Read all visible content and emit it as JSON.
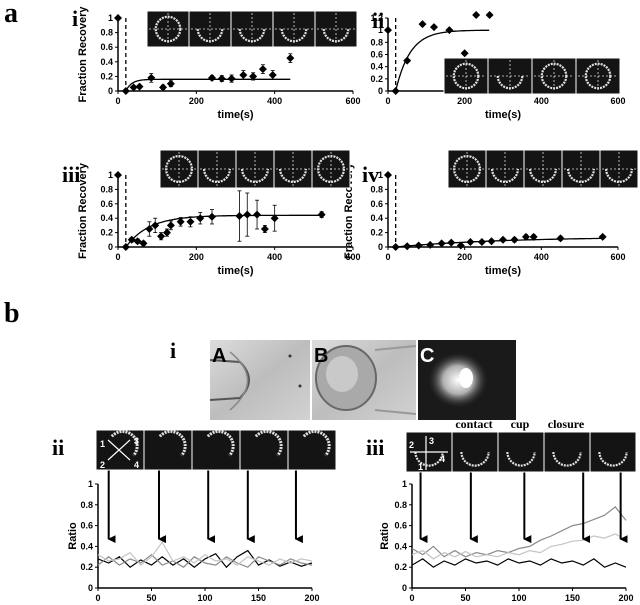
{
  "panel_a": {
    "letter": "a"
  },
  "panel_b": {
    "letter": "b"
  },
  "colors": {
    "ink": "#000000",
    "series_gray": "#8a8a8a",
    "series_light": "#c4c4c4",
    "image_bg": "#1a1a1a"
  },
  "b_micrographs": {
    "label": "i",
    "letters": [
      "A",
      "B",
      "C"
    ]
  },
  "b_quadrant_numbers": [
    "1",
    "2",
    "3",
    "4"
  ],
  "chart_data": [
    {
      "id": "a-i",
      "label": "i",
      "type": "scatter",
      "xlabel": "time(s)",
      "ylabel": "Fraction Recovery",
      "xlim": [
        0,
        600
      ],
      "ylim": [
        0,
        1
      ],
      "xticks": [
        "0",
        "200",
        "400",
        "600"
      ],
      "yticks": [
        "0",
        "0.2",
        "0.4",
        "0.6",
        "0.8",
        "1"
      ],
      "dashed_x": 20,
      "points": [
        [
          0,
          1
        ],
        [
          20,
          0
        ],
        [
          40,
          0.05
        ],
        [
          55,
          0.06
        ],
        [
          85,
          0.18
        ],
        [
          115,
          0.05
        ],
        [
          135,
          0.1
        ],
        [
          240,
          0.18
        ],
        [
          265,
          0.17
        ],
        [
          290,
          0.17
        ],
        [
          320,
          0.22
        ],
        [
          345,
          0.2
        ],
        [
          370,
          0.3
        ],
        [
          395,
          0.22
        ],
        [
          440,
          0.45
        ]
      ],
      "errors": [
        0,
        0,
        0.02,
        0.02,
        0.06,
        0.03,
        0.04,
        0.03,
        0.04,
        0.05,
        0.06,
        0.05,
        0.06,
        0.06,
        0.06
      ],
      "fit": {
        "plateau": 0.16,
        "tau": 15,
        "start": 20,
        "end": 440
      }
    },
    {
      "id": "a-ii",
      "label": "ii",
      "type": "scatter",
      "xlabel": "time(s)",
      "ylabel": "",
      "xlim": [
        0,
        600
      ],
      "ylim": [
        0,
        1.2
      ],
      "xticks": [
        "0",
        "200",
        "400",
        "600"
      ],
      "yticks": [
        "0",
        "0.2",
        "0.4",
        "0.6",
        "0.8",
        "1",
        "1.2"
      ],
      "dashed_x": 20,
      "points": [
        [
          0,
          1
        ],
        [
          20,
          0
        ],
        [
          50,
          0.5
        ],
        [
          90,
          1.1
        ],
        [
          120,
          1.05
        ],
        [
          160,
          1
        ],
        [
          200,
          0.62
        ],
        [
          230,
          1.25
        ],
        [
          265,
          1.25
        ]
      ],
      "errors": [
        0,
        0,
        0,
        0,
        0,
        0,
        0,
        0,
        0
      ],
      "fit": {
        "plateau": 1.0,
        "tau": 38,
        "start": 20,
        "end": 265
      }
    },
    {
      "id": "a-iii",
      "label": "iii",
      "type": "scatter",
      "xlabel": "time(s)",
      "ylabel": "Fraction Recovery",
      "xlim": [
        0,
        600
      ],
      "ylim": [
        0,
        1
      ],
      "xticks": [
        "0",
        "200",
        "400",
        "600"
      ],
      "yticks": [
        "0",
        "0.2",
        "0.4",
        "0.6",
        "0.8",
        "1"
      ],
      "dashed_x": 20,
      "points": [
        [
          0,
          1
        ],
        [
          20,
          0
        ],
        [
          35,
          0.1
        ],
        [
          50,
          0.08
        ],
        [
          65,
          0.05
        ],
        [
          80,
          0.25
        ],
        [
          95,
          0.3
        ],
        [
          110,
          0.15
        ],
        [
          125,
          0.2
        ],
        [
          135,
          0.3
        ],
        [
          160,
          0.35
        ],
        [
          185,
          0.35
        ],
        [
          210,
          0.4
        ],
        [
          240,
          0.42
        ],
        [
          310,
          0.43
        ],
        [
          330,
          0.45
        ],
        [
          355,
          0.45
        ],
        [
          375,
          0.25
        ],
        [
          400,
          0.4
        ],
        [
          520,
          0.45
        ]
      ],
      "errors": [
        0,
        0,
        0.03,
        0.03,
        0.03,
        0.1,
        0.1,
        0.05,
        0.05,
        0.06,
        0.06,
        0.07,
        0.08,
        0.1,
        0.35,
        0.3,
        0.2,
        0.05,
        0.18,
        0.04
      ],
      "fit": {
        "plateau": 0.44,
        "tau": 60,
        "start": 20,
        "end": 520
      }
    },
    {
      "id": "a-iv",
      "label": "iv",
      "type": "scatter",
      "xlabel": "time(s)",
      "ylabel": "Fraction Recovery",
      "xlim": [
        0,
        600
      ],
      "ylim": [
        0,
        1
      ],
      "xticks": [
        "0",
        "200",
        "400",
        "600"
      ],
      "yticks": [
        "0",
        "0.2",
        "0.4",
        "0.6",
        "0.8",
        "1"
      ],
      "dashed_x": 20,
      "points": [
        [
          0,
          1
        ],
        [
          20,
          0
        ],
        [
          50,
          0.01
        ],
        [
          80,
          0.02
        ],
        [
          110,
          0.03
        ],
        [
          140,
          0.05
        ],
        [
          165,
          0.06
        ],
        [
          190,
          0.02
        ],
        [
          215,
          0.07
        ],
        [
          245,
          0.07
        ],
        [
          270,
          0.08
        ],
        [
          300,
          0.1
        ],
        [
          330,
          0.1
        ],
        [
          360,
          0.14
        ],
        [
          380,
          0.14
        ],
        [
          450,
          0.12
        ],
        [
          560,
          0.14
        ]
      ],
      "errors": [
        0,
        0,
        0,
        0,
        0,
        0,
        0.02,
        0.01,
        0.02,
        0.02,
        0.02,
        0.02,
        0.03,
        0.03,
        0.03,
        0.03,
        0.02
      ],
      "fit": {
        "plateau": 0.14,
        "tau": 280,
        "start": 20,
        "end": 560
      }
    },
    {
      "id": "b-ii",
      "label": "ii",
      "type": "line",
      "xlabel": "time(s)",
      "ylabel": "Ratio",
      "xlim": [
        0,
        200
      ],
      "ylim": [
        0,
        1
      ],
      "xticks": [
        "0",
        "50",
        "100",
        "150",
        "200"
      ],
      "yticks": [
        "0",
        "0.2",
        "0.4",
        "0.6",
        "0.8",
        "1"
      ],
      "arrows_x": [
        10,
        57,
        103,
        140,
        185
      ],
      "series": [
        {
          "color": "#000000",
          "values": [
            [
              0,
              0.28
            ],
            [
              10,
              0.24
            ],
            [
              20,
              0.3
            ],
            [
              30,
              0.2
            ],
            [
              40,
              0.27
            ],
            [
              50,
              0.22
            ],
            [
              60,
              0.3
            ],
            [
              70,
              0.22
            ],
            [
              80,
              0.28
            ],
            [
              90,
              0.2
            ],
            [
              100,
              0.28
            ],
            [
              110,
              0.33
            ],
            [
              120,
              0.2
            ],
            [
              130,
              0.3
            ],
            [
              140,
              0.36
            ],
            [
              150,
              0.22
            ],
            [
              160,
              0.27
            ],
            [
              170,
              0.21
            ],
            [
              180,
              0.25
            ],
            [
              190,
              0.21
            ],
            [
              200,
              0.24
            ]
          ]
        },
        {
          "color": "#8a8a8a",
          "values": [
            [
              0,
              0.22
            ],
            [
              10,
              0.3
            ],
            [
              20,
              0.22
            ],
            [
              30,
              0.28
            ],
            [
              40,
              0.24
            ],
            [
              50,
              0.32
            ],
            [
              60,
              0.22
            ],
            [
              70,
              0.26
            ],
            [
              80,
              0.2
            ],
            [
              90,
              0.3
            ],
            [
              100,
              0.24
            ],
            [
              110,
              0.22
            ],
            [
              120,
              0.3
            ],
            [
              130,
              0.24
            ],
            [
              140,
              0.2
            ],
            [
              150,
              0.3
            ],
            [
              160,
              0.26
            ],
            [
              170,
              0.22
            ],
            [
              180,
              0.28
            ],
            [
              190,
              0.24
            ],
            [
              200,
              0.22
            ]
          ]
        },
        {
          "color": "#c4c4c4",
          "values": [
            [
              0,
              0.32
            ],
            [
              10,
              0.26
            ],
            [
              20,
              0.28
            ],
            [
              30,
              0.34
            ],
            [
              40,
              0.22
            ],
            [
              50,
              0.3
            ],
            [
              60,
              0.44
            ],
            [
              70,
              0.26
            ],
            [
              80,
              0.3
            ],
            [
              90,
              0.24
            ],
            [
              100,
              0.32
            ],
            [
              110,
              0.26
            ],
            [
              120,
              0.28
            ],
            [
              130,
              0.22
            ],
            [
              140,
              0.3
            ],
            [
              150,
              0.26
            ],
            [
              160,
              0.22
            ],
            [
              170,
              0.28
            ],
            [
              180,
              0.24
            ],
            [
              190,
              0.28
            ],
            [
              200,
              0.26
            ]
          ]
        }
      ]
    },
    {
      "id": "b-iii",
      "label": "iii",
      "type": "line",
      "xlabel": "time(s)",
      "ylabel": "Ratio",
      "xlim": [
        0,
        200
      ],
      "ylim": [
        0,
        1
      ],
      "xticks": [
        "0",
        "50",
        "100",
        "150",
        "200"
      ],
      "yticks": [
        "0",
        "0.2",
        "0.4",
        "0.6",
        "0.8",
        "1"
      ],
      "arrows_x": [
        8,
        55,
        105,
        160,
        195
      ],
      "image_annotations": [
        "contact",
        "cup",
        "closure"
      ],
      "series": [
        {
          "color": "#8a8a8a",
          "values": [
            [
              0,
              0.38
            ],
            [
              10,
              0.32
            ],
            [
              20,
              0.4
            ],
            [
              30,
              0.3
            ],
            [
              40,
              0.36
            ],
            [
              50,
              0.3
            ],
            [
              60,
              0.34
            ],
            [
              70,
              0.32
            ],
            [
              80,
              0.36
            ],
            [
              90,
              0.34
            ],
            [
              100,
              0.38
            ],
            [
              110,
              0.4
            ],
            [
              120,
              0.46
            ],
            [
              130,
              0.5
            ],
            [
              140,
              0.55
            ],
            [
              150,
              0.6
            ],
            [
              160,
              0.62
            ],
            [
              170,
              0.66
            ],
            [
              180,
              0.7
            ],
            [
              190,
              0.78
            ],
            [
              200,
              0.65
            ]
          ]
        },
        {
          "color": "#c4c4c4",
          "values": [
            [
              0,
              0.32
            ],
            [
              10,
              0.36
            ],
            [
              20,
              0.28
            ],
            [
              30,
              0.34
            ],
            [
              40,
              0.3
            ],
            [
              50,
              0.35
            ],
            [
              60,
              0.3
            ],
            [
              70,
              0.32
            ],
            [
              80,
              0.3
            ],
            [
              90,
              0.34
            ],
            [
              100,
              0.32
            ],
            [
              110,
              0.36
            ],
            [
              120,
              0.34
            ],
            [
              130,
              0.4
            ],
            [
              140,
              0.42
            ],
            [
              150,
              0.45
            ],
            [
              160,
              0.46
            ],
            [
              170,
              0.5
            ],
            [
              180,
              0.48
            ],
            [
              190,
              0.52
            ],
            [
              200,
              0.46
            ]
          ]
        },
        {
          "color": "#000000",
          "values": [
            [
              0,
              0.22
            ],
            [
              10,
              0.28
            ],
            [
              20,
              0.2
            ],
            [
              30,
              0.26
            ],
            [
              40,
              0.22
            ],
            [
              50,
              0.28
            ],
            [
              60,
              0.24
            ],
            [
              70,
              0.26
            ],
            [
              80,
              0.22
            ],
            [
              90,
              0.28
            ],
            [
              100,
              0.24
            ],
            [
              110,
              0.26
            ],
            [
              120,
              0.22
            ],
            [
              130,
              0.28
            ],
            [
              140,
              0.24
            ],
            [
              150,
              0.26
            ],
            [
              160,
              0.22
            ],
            [
              170,
              0.28
            ],
            [
              180,
              0.2
            ],
            [
              190,
              0.24
            ],
            [
              200,
              0.2
            ]
          ]
        }
      ]
    }
  ]
}
